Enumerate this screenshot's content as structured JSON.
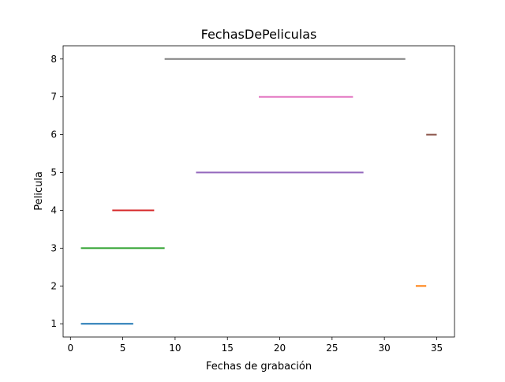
{
  "chart_data": {
    "type": "line",
    "title": "FechasDePeliculas",
    "xlabel": "Fechas de grabación",
    "ylabel": "Pelicula",
    "xlim": [
      -0.7,
      36.7
    ],
    "ylim": [
      0.65,
      8.35
    ],
    "xticks": [
      0,
      5,
      10,
      15,
      20,
      25,
      30,
      35
    ],
    "yticks": [
      1,
      2,
      3,
      4,
      5,
      6,
      7,
      8
    ],
    "grid": false,
    "legend": "none",
    "series": [
      {
        "x": [
          1,
          6
        ],
        "y": [
          1,
          1
        ],
        "color": "#1f77b4"
      },
      {
        "x": [
          33,
          34
        ],
        "y": [
          2,
          2
        ],
        "color": "#ff7f0e"
      },
      {
        "x": [
          1,
          9
        ],
        "y": [
          3,
          3
        ],
        "color": "#2ca02c"
      },
      {
        "x": [
          4,
          8
        ],
        "y": [
          4,
          4
        ],
        "color": "#d62728"
      },
      {
        "x": [
          12,
          28
        ],
        "y": [
          5,
          5
        ],
        "color": "#9467bd"
      },
      {
        "x": [
          34,
          35
        ],
        "y": [
          6,
          6
        ],
        "color": "#8c564b"
      },
      {
        "x": [
          18,
          27
        ],
        "y": [
          7,
          7
        ],
        "color": "#e377c2"
      },
      {
        "x": [
          9,
          32
        ],
        "y": [
          8,
          8
        ],
        "color": "#7f7f7f"
      }
    ]
  }
}
